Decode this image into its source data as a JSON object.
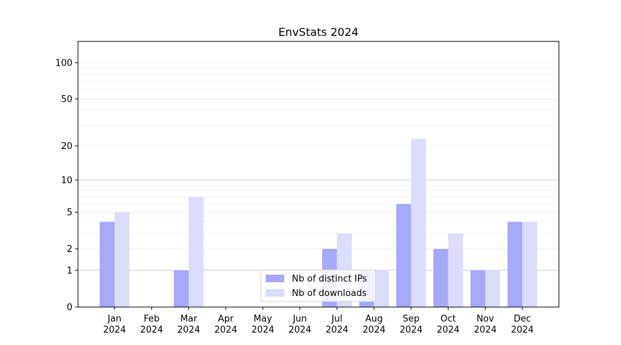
{
  "chart_data": {
    "type": "bar",
    "title": "EnvStats 2024",
    "xlabel": "",
    "ylabel": "",
    "yscale": "log1p",
    "ylim": [
      0,
      150
    ],
    "yticks": [
      0,
      1,
      2,
      5,
      10,
      20,
      50,
      100
    ],
    "ytick_labels": [
      "0",
      "1",
      "2",
      "5",
      "10",
      "20",
      "50",
      "100"
    ],
    "categories": [
      {
        "month": "Jan",
        "year": "2024"
      },
      {
        "month": "Feb",
        "year": "2024"
      },
      {
        "month": "Mar",
        "year": "2024"
      },
      {
        "month": "Apr",
        "year": "2024"
      },
      {
        "month": "May",
        "year": "2024"
      },
      {
        "month": "Jun",
        "year": "2024"
      },
      {
        "month": "Jul",
        "year": "2024"
      },
      {
        "month": "Aug",
        "year": "2024"
      },
      {
        "month": "Sep",
        "year": "2024"
      },
      {
        "month": "Oct",
        "year": "2024"
      },
      {
        "month": "Nov",
        "year": "2024"
      },
      {
        "month": "Dec",
        "year": "2024"
      }
    ],
    "series": [
      {
        "name": "Nb of distinct IPs",
        "color": "#a8a8f8",
        "values": [
          4,
          0,
          1,
          0,
          0,
          0,
          2,
          1,
          6,
          2,
          1,
          4
        ]
      },
      {
        "name": "Nb of downloads",
        "color": "#dcdcfb",
        "values": [
          5,
          0,
          7,
          0,
          0,
          0,
          3,
          1,
          23,
          3,
          1,
          4
        ]
      }
    ],
    "grid": true,
    "legend_position": "lower-center"
  }
}
